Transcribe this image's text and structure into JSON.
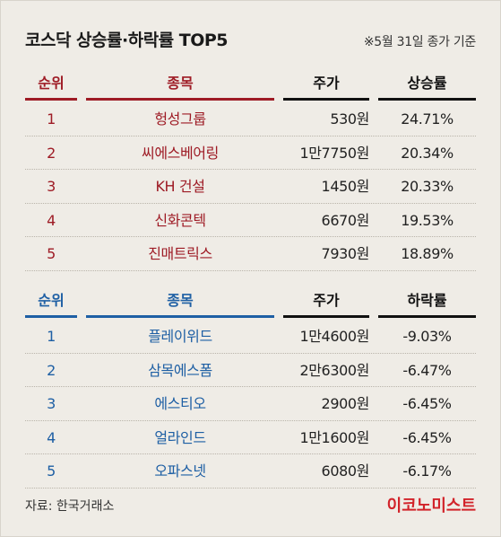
{
  "title": "코스닥 상승률·하락률 TOP5",
  "basis": "※5월 31일 종가 기준",
  "gainers": {
    "headers": {
      "rank": "순위",
      "name": "종목",
      "price": "주가",
      "rate": "상승률"
    },
    "rows": [
      {
        "rank": "1",
        "name": "헝성그룹",
        "price": "530원",
        "rate": "24.71%"
      },
      {
        "rank": "2",
        "name": "씨에스베어링",
        "price": "1만7750원",
        "rate": "20.34%"
      },
      {
        "rank": "3",
        "name": "KH 건설",
        "price": "1450원",
        "rate": "20.33%"
      },
      {
        "rank": "4",
        "name": "신화콘텍",
        "price": "6670원",
        "rate": "19.53%"
      },
      {
        "rank": "5",
        "name": "진매트릭스",
        "price": "7930원",
        "rate": "18.89%"
      }
    ]
  },
  "losers": {
    "headers": {
      "rank": "순위",
      "name": "종목",
      "price": "주가",
      "rate": "하락률"
    },
    "rows": [
      {
        "rank": "1",
        "name": "플레이위드",
        "price": "1만4600원",
        "rate": "-9.03%"
      },
      {
        "rank": "2",
        "name": "삼목에스폼",
        "price": "2만6300원",
        "rate": "-6.47%"
      },
      {
        "rank": "3",
        "name": "에스티오",
        "price": "2900원",
        "rate": "-6.45%"
      },
      {
        "rank": "4",
        "name": "얼라인드",
        "price": "1만1600원",
        "rate": "-6.45%"
      },
      {
        "rank": "5",
        "name": "오파스넷",
        "price": "6080원",
        "rate": "-6.17%"
      }
    ]
  },
  "source": "자료: 한국거래소",
  "logo": "이코노미스트",
  "colors": {
    "gain": "#9e1b25",
    "loss": "#1e5fa4",
    "background": "#efece6",
    "logo": "#d2232a"
  }
}
